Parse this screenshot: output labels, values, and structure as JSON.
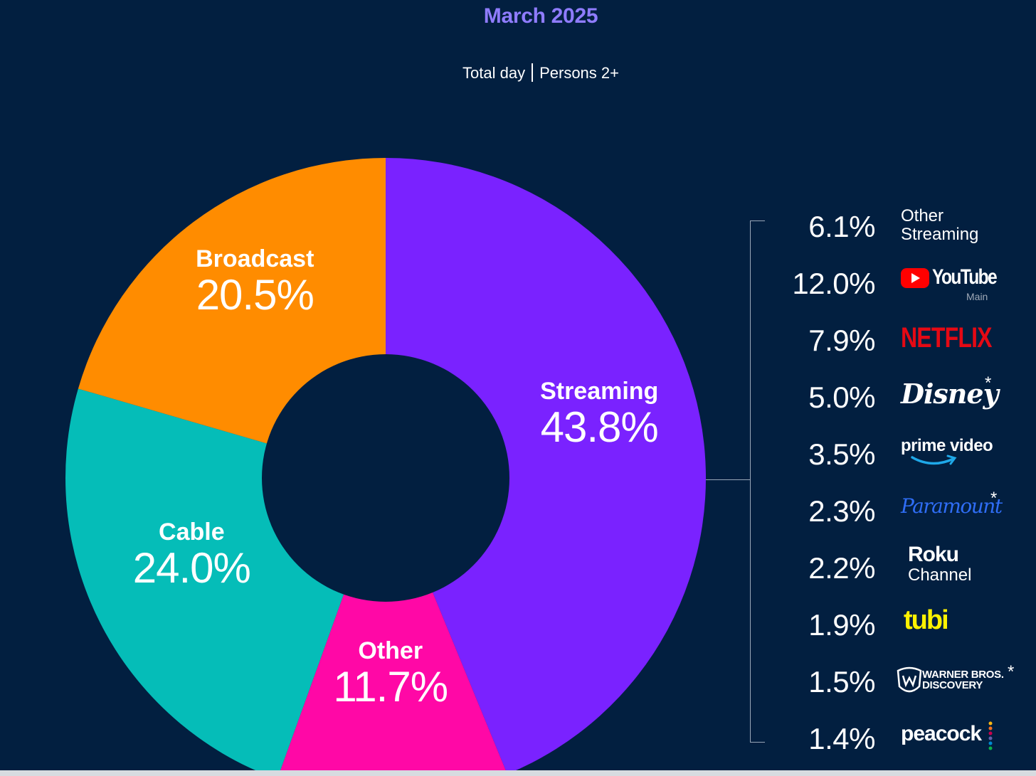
{
  "header": {
    "title": "March 2025",
    "subtitle_left": "Total day",
    "subtitle_right": "Persons 2+"
  },
  "chart_data": {
    "type": "pie",
    "title": "March 2025",
    "subtitle": "Total day | Persons 2+",
    "categories": [
      "Streaming",
      "Other",
      "Cable",
      "Broadcast"
    ],
    "values": [
      43.8,
      11.7,
      24.0,
      20.5
    ],
    "value_labels": [
      "43.8%",
      "11.7%",
      "24.0%",
      "20.5%"
    ],
    "colors": [
      "#7a22ff",
      "#ff08a6",
      "#05bdb8",
      "#ff8c00"
    ],
    "donut": true,
    "breakdown": {
      "of": "Streaming",
      "items": [
        {
          "name": "Other Streaming",
          "value": 6.1,
          "label": "6.1%"
        },
        {
          "name": "YouTube Main",
          "value": 12.0,
          "label": "12.0%"
        },
        {
          "name": "NETFLIX",
          "value": 7.9,
          "label": "7.9%"
        },
        {
          "name": "Disney*",
          "value": 5.0,
          "label": "5.0%"
        },
        {
          "name": "prime video",
          "value": 3.5,
          "label": "3.5%"
        },
        {
          "name": "Paramount*",
          "value": 2.3,
          "label": "2.3%"
        },
        {
          "name": "Roku Channel",
          "value": 2.2,
          "label": "2.2%"
        },
        {
          "name": "tubi",
          "value": 1.9,
          "label": "1.9%"
        },
        {
          "name": "WARNER BROS. DISCOVERY*",
          "value": 1.5,
          "label": "1.5%"
        },
        {
          "name": "peacock",
          "value": 1.4,
          "label": "1.4%"
        }
      ]
    }
  },
  "logos": {
    "other_streaming_line1": "Other",
    "other_streaming_line2": "Streaming",
    "youtube_word": "YouTube",
    "youtube_sub": "Main",
    "netflix": "NETFLIX",
    "disney": "Disney",
    "prime": "prime video",
    "paramount": "Paramount",
    "roku_line1": "Roku",
    "roku_line2": "Channel",
    "tubi": "tubi",
    "wbd_line1": "WARNER BROS.",
    "wbd_line2": "DISCOVERY",
    "peacock": "peacock",
    "asterisk": "*"
  },
  "colors": {
    "background": "#021f40",
    "title": "#8f7cff",
    "youtube_red": "#ff0000",
    "netflix_red": "#e50914",
    "prime_blue": "#1fa8e8",
    "paramount_blue": "#2f6df5",
    "tubi_yellow": "#fff200"
  }
}
